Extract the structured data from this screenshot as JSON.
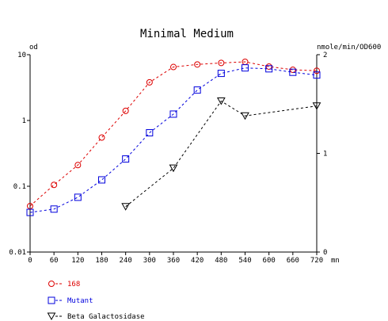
{
  "chart_data": {
    "type": "line",
    "title": "Minimal Medium",
    "left_axis": {
      "unit_label": "od",
      "scale": "log",
      "ylim": [
        0.01,
        10
      ],
      "tick_values": [
        0.01,
        0.1,
        1,
        10
      ],
      "tick_labels": [
        "0.01",
        "0.1",
        "1",
        "10"
      ]
    },
    "right_axis": {
      "unit_label": "nmole/min/OD600",
      "scale": "linear",
      "ylim": [
        0,
        2
      ],
      "tick_values": [
        0,
        1,
        2
      ],
      "tick_labels": [
        "0",
        "1",
        "2"
      ]
    },
    "x_axis": {
      "unit_label": "mn",
      "xlim": [
        0,
        720
      ],
      "tick_values": [
        0,
        60,
        120,
        180,
        240,
        300,
        360,
        420,
        480,
        540,
        600,
        660,
        720
      ],
      "tick_labels": [
        "0",
        "60",
        "120",
        "180",
        "240",
        "300",
        "360",
        "420",
        "480",
        "540",
        "600",
        "660",
        "720"
      ]
    },
    "grid": false,
    "legend_position": "bottom-left",
    "series": [
      {
        "name": "168",
        "axis": "left",
        "color": "#dd0000",
        "marker": "circle",
        "line": "dashed",
        "x": [
          0,
          60,
          120,
          180,
          240,
          300,
          360,
          420,
          480,
          540,
          600,
          660,
          720
        ],
        "y": [
          0.05,
          0.105,
          0.21,
          0.55,
          1.4,
          3.8,
          6.5,
          7.1,
          7.5,
          7.8,
          6.6,
          5.9,
          5.7
        ]
      },
      {
        "name": "Mutant",
        "axis": "left",
        "color": "#0000dd",
        "marker": "square",
        "line": "dashed",
        "x": [
          0,
          60,
          120,
          180,
          240,
          300,
          360,
          420,
          480,
          540,
          600,
          660,
          720
        ],
        "y": [
          0.04,
          0.045,
          0.068,
          0.125,
          0.26,
          0.65,
          1.25,
          2.9,
          5.2,
          6.3,
          6.1,
          5.4,
          4.9
        ]
      },
      {
        "name": "Beta Galactosidase",
        "axis": "right",
        "color": "#000000",
        "marker": "triangle-down",
        "line": "dashed",
        "x": [
          240,
          360,
          480,
          540,
          720
        ],
        "y": [
          0.46,
          0.85,
          1.53,
          1.38,
          1.48
        ]
      }
    ]
  }
}
